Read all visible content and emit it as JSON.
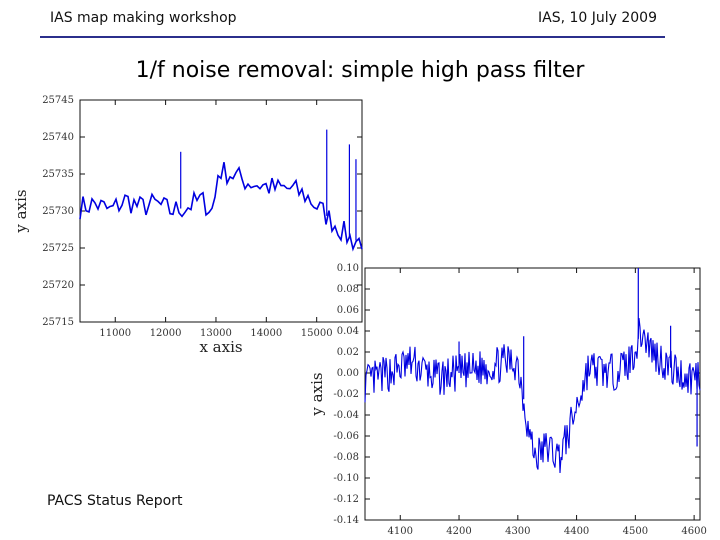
{
  "header": {
    "left": "IAS map making workshop",
    "right": "IAS, 10 July 2009"
  },
  "title": "1/f noise removal: simple high pass filter",
  "footer": "PACS Status Report",
  "colors": {
    "rule": "#2b2f8c",
    "trace": "#0000e0"
  },
  "chart_data": [
    {
      "type": "line",
      "title": "",
      "xlabel": "x axis",
      "ylabel": "y axis",
      "xlim": [
        10300,
        15900
      ],
      "ylim": [
        25715,
        25745
      ],
      "xticks": [
        11000,
        12000,
        13000,
        14000,
        15000
      ],
      "xtick_labels": [
        "11000",
        "12000",
        "13000",
        "14000",
        "15000"
      ],
      "yticks": [
        25745,
        25740,
        25735,
        25730,
        25725,
        25720,
        25715
      ],
      "ytick_labels": [
        "25745",
        "25740",
        "25735",
        "25730",
        "25725",
        "25720",
        "25715"
      ],
      "series": [
        {
          "x": [
            10300,
            10600,
            10900,
            11200,
            11500,
            11800,
            12100,
            12400,
            12700,
            12950,
            13000,
            13050,
            13300,
            13600,
            13900,
            14200,
            14500,
            14800,
            15100,
            15400,
            15700,
            15900
          ],
          "y": [
            25730.5,
            25731,
            25730,
            25731.5,
            25730.5,
            25731,
            25730,
            25730.5,
            25731.5,
            25730,
            25733,
            25735.5,
            25735,
            25734,
            25733.5,
            25733,
            25733,
            25732,
            25730,
            25728,
            25726,
            25726
          ]
        }
      ]
    },
    {
      "type": "line",
      "title": "",
      "xlabel": "",
      "ylabel": "y axis",
      "xlim": [
        4040,
        4610
      ],
      "ylim": [
        -0.14,
        0.1
      ],
      "xticks": [
        4100,
        4200,
        4300,
        4400,
        4500,
        4600
      ],
      "xtick_labels": [
        "4100",
        "4200",
        "4300",
        "4400",
        "4500",
        "4600"
      ],
      "yticks": [
        0.1,
        0.08,
        0.06,
        0.04,
        0.02,
        0.0,
        -0.02,
        -0.04,
        -0.06,
        -0.08,
        -0.1,
        -0.12,
        -0.14
      ],
      "ytick_labels": [
        "0.10",
        "0.08",
        "0.06",
        "0.04",
        "0.02",
        "0.00",
        "-0.02",
        "-0.04",
        "-0.06",
        "-0.08",
        "-0.10",
        "-0.12",
        "-0.14"
      ],
      "series": [
        {
          "x": [
            4040,
            4080,
            4120,
            4160,
            4200,
            4240,
            4280,
            4300,
            4320,
            4330,
            4350,
            4370,
            4385,
            4420,
            4460,
            4490,
            4510,
            4530,
            4560,
            4590,
            4610
          ],
          "y": [
            -0.01,
            0.0,
            0.01,
            -0.005,
            0.0,
            0.005,
            0.01,
            0.01,
            -0.06,
            -0.08,
            -0.07,
            -0.08,
            -0.06,
            0.005,
            0.0,
            0.01,
            0.04,
            0.02,
            0.005,
            -0.005,
            0.0
          ]
        }
      ]
    }
  ]
}
